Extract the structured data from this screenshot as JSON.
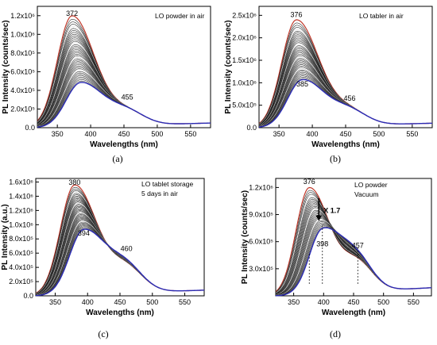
{
  "chart_data": [
    {
      "type": "line",
      "title": "",
      "xlabel": "Wavelengths (nm)",
      "ylabel": "PL Intensity (counts/sec)",
      "xlim": [
        320,
        580
      ],
      "ylim": [
        0,
        1300000
      ],
      "xticks": [
        350,
        400,
        450,
        500,
        550
      ],
      "yticks": [
        0,
        200000,
        400000,
        600000,
        800000,
        1000000,
        1200000
      ],
      "ytick_labels": [
        "0.0",
        "2.0x10⁵",
        "4.0x10⁵",
        "6.0x10⁵",
        "8.0x10⁵",
        "1.0x10⁶",
        "1.2x10⁶"
      ],
      "legend_note": "LO powder in air",
      "caption": "(a)",
      "peak_labels": [
        {
          "text": "372",
          "x": 372,
          "y": 1200000
        },
        {
          "text": "455",
          "x": 455,
          "y": 300000
        }
      ],
      "series": [
        {
          "role": "initial",
          "color": "#c0392b",
          "peak_x": 372,
          "peak_y": 1190000
        },
        {
          "role": "final",
          "color": "#2b2bb5",
          "peak_x": 385,
          "peak_y": 470000
        }
      ],
      "curve_count": 40,
      "shoulder": {
        "x": 455,
        "y": 255000
      },
      "tail_y": 50000
    },
    {
      "type": "line",
      "title": "",
      "xlabel": "Wavelengths (nm)",
      "ylabel": "PL Intensity (counts/sec)",
      "xlim": [
        320,
        580
      ],
      "ylim": [
        0,
        2700000
      ],
      "xticks": [
        350,
        400,
        450,
        500,
        550
      ],
      "yticks": [
        0,
        500000,
        1000000,
        1500000,
        2000000,
        2500000
      ],
      "ytick_labels": [
        "0.0",
        "5.0x10⁵",
        "1.0x10⁶",
        "1.5x10⁶",
        "2.0x10⁶",
        "2.5x10⁶"
      ],
      "legend_note": "LO tabler in air",
      "caption": "(b)",
      "peak_labels": [
        {
          "text": "376",
          "x": 376,
          "y": 2460000
        },
        {
          "text": "385",
          "x": 385,
          "y": 920000
        },
        {
          "text": "456",
          "x": 456,
          "y": 600000
        }
      ],
      "series": [
        {
          "role": "initial",
          "color": "#c0392b",
          "peak_x": 376,
          "peak_y": 2380000
        },
        {
          "role": "final",
          "color": "#2b2bb5",
          "peak_x": 385,
          "peak_y": 1040000
        }
      ],
      "curve_count": 40,
      "shoulder": {
        "x": 456,
        "y": 560000
      },
      "tail_y": 100000
    },
    {
      "type": "line",
      "title": "",
      "xlabel": "Wavelengths (nm)",
      "ylabel": "PL Intensity (a.u.)",
      "xlim": [
        320,
        580
      ],
      "ylim": [
        0,
        1650000
      ],
      "xticks": [
        350,
        400,
        450,
        500,
        550
      ],
      "yticks": [
        0,
        200000,
        400000,
        600000,
        800000,
        1000000,
        1200000,
        1400000,
        1600000
      ],
      "ytick_labels": [
        "0.0",
        "2.0x10⁵",
        "4.0x10⁵",
        "6.0x10⁵",
        "8.0x10⁵",
        "1.0x10⁶",
        "1.2x10⁶",
        "1.4x10⁶",
        "1.6x10⁶"
      ],
      "legend_note": [
        "LO tablet storage",
        "5 days in air"
      ],
      "caption": "(c)",
      "peak_labels": [
        {
          "text": "380",
          "x": 380,
          "y": 1560000
        },
        {
          "text": "394",
          "x": 394,
          "y": 850000
        },
        {
          "text": "460",
          "x": 460,
          "y": 630000
        }
      ],
      "series": [
        {
          "role": "initial",
          "color": "#c0392b",
          "peak_x": 380,
          "peak_y": 1540000
        },
        {
          "role": "final",
          "color": "#2b2bb5",
          "peak_x": 394,
          "peak_y": 900000
        }
      ],
      "curve_count": 40,
      "shoulder": {
        "x": 460,
        "y": 620000
      },
      "tail_y": 80000
    },
    {
      "type": "line",
      "title": "",
      "xlabel": "Wavelength (nm)",
      "ylabel": "PL Intensity (counts/sec)",
      "xlim": [
        320,
        580
      ],
      "ylim": [
        0,
        1300000
      ],
      "xticks": [
        350,
        400,
        450,
        500,
        550
      ],
      "yticks": [
        300000,
        600000,
        900000,
        1200000
      ],
      "ytick_labels": [
        "3.0x10⁵",
        "6.0x10⁵",
        "9.0x10⁵",
        "1.2x10⁶"
      ],
      "legend_note": [
        "LO powder",
        "Vacuum"
      ],
      "caption": "(d)",
      "arrow_label": "X 1.7",
      "peak_labels": [
        {
          "text": "376",
          "x": 376,
          "y": 1240000
        },
        {
          "text": "398",
          "x": 398,
          "y": 550000
        },
        {
          "text": "457",
          "x": 457,
          "y": 530000
        }
      ],
      "series": [
        {
          "role": "initial",
          "color": "#c0392b",
          "peak_x": 376,
          "peak_y": 1180000
        },
        {
          "role": "final",
          "color": "#2b2bb5",
          "peak_x": 398,
          "peak_y": 700000
        }
      ],
      "curve_count": 30,
      "shoulder": {
        "x": 457,
        "y": 560000
      },
      "tail_y": 90000,
      "guide_x": [
        376,
        398,
        457
      ]
    }
  ]
}
